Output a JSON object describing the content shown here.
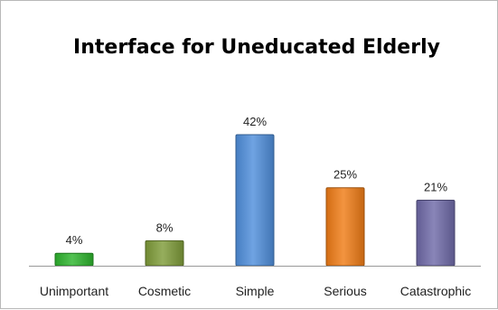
{
  "chart_data": {
    "type": "bar",
    "title": "Interface for Uneducated Elderly",
    "categories": [
      "Unimportant",
      "Cosmetic",
      "Simple",
      "Serious",
      "Catastrophic"
    ],
    "values": [
      4,
      8,
      42,
      25,
      21
    ],
    "value_labels": [
      "4%",
      "8%",
      "42%",
      "25%",
      "21%"
    ],
    "unit": "%",
    "ylim": [
      0,
      42
    ],
    "grid": false,
    "legend": "none",
    "colors": [
      "#2db52d",
      "#7f9c39",
      "#4f8fdc",
      "#f07c16",
      "#6f6aa8"
    ],
    "axis_color": "#999999"
  }
}
